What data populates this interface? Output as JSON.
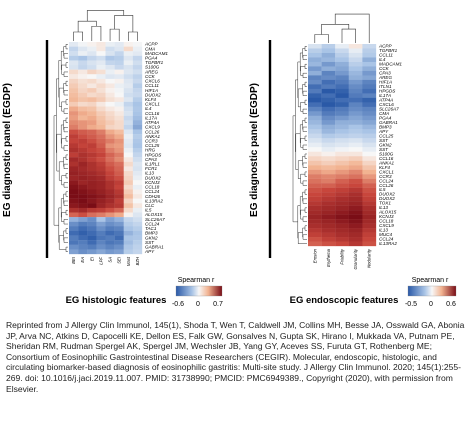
{
  "chart_data": [
    {
      "type": "heatmap",
      "panel": "left",
      "ylabel": "EG diagnostic panel (EGDP)",
      "xlabel": "EG histologic features",
      "columns": [
        "BEI",
        "EA",
        "EI",
        "LPF",
        "SA",
        "SEI",
        "Mast",
        "BZH"
      ],
      "rows": [
        "ACPP",
        "CMA",
        "MADCAM1",
        "PGA4",
        "TGFBR1",
        "S100G",
        "AREG",
        "CCK",
        "CXCL6",
        "CCL11",
        "HIF1A",
        "DUOX2",
        "KLF4",
        "CXCL1",
        "IL4",
        "CCL16",
        "IL17A",
        "ATP4A",
        "CXCL9",
        "CCL26",
        "ANKA1",
        "CCR3",
        "CCL25",
        "HRG",
        "HPGDS",
        "CPA3",
        "IL1RL1",
        "FCR1",
        "IL13",
        "DUOX2",
        "KCNJ3",
        "CCL18",
        "CCL24",
        "CDH26",
        "IL13RA2",
        "CLC",
        "IL5",
        "ALOX15",
        "SLC26A7",
        "CCL24",
        "TAC1",
        "BMP3",
        "GKN2",
        "SST",
        "GABRA1",
        "APY"
      ],
      "legend": {
        "title": "Spearman r",
        "ticks": [
          "-0.6",
          "0",
          "0.7"
        ]
      },
      "values": [
        [
          -0.08,
          -0.02,
          0.02,
          0.05,
          -0.05,
          -0.08,
          0.02,
          -0.01
        ],
        [
          -0.2,
          -0.1,
          -0.05,
          0.05,
          -0.15,
          -0.1,
          0.1,
          -0.05
        ],
        [
          -0.15,
          -0.05,
          -0.1,
          0.0,
          -0.12,
          -0.2,
          -0.05,
          -0.08
        ],
        [
          -0.25,
          -0.3,
          -0.2,
          -0.15,
          -0.28,
          -0.25,
          -0.1,
          -0.2
        ],
        [
          -0.1,
          -0.18,
          -0.12,
          -0.08,
          -0.2,
          -0.22,
          -0.05,
          -0.15
        ],
        [
          -0.12,
          -0.2,
          -0.15,
          -0.05,
          -0.1,
          -0.18,
          -0.12,
          -0.2
        ],
        [
          0.1,
          0.05,
          0.12,
          0.08,
          -0.05,
          0.02,
          -0.1,
          -0.15
        ],
        [
          0.05,
          0.02,
          0.0,
          -0.05,
          -0.1,
          -0.08,
          -0.15,
          -0.22
        ],
        [
          0.12,
          0.08,
          0.1,
          0.05,
          0.0,
          0.02,
          -0.1,
          -0.18
        ],
        [
          0.15,
          0.1,
          0.05,
          0.1,
          0.05,
          -0.05,
          -0.08,
          -0.25
        ],
        [
          0.18,
          0.12,
          0.15,
          0.08,
          0.02,
          -0.02,
          -0.12,
          -0.2
        ],
        [
          0.2,
          0.15,
          0.1,
          0.12,
          0.05,
          0.0,
          -0.15,
          -0.18
        ],
        [
          0.22,
          0.18,
          0.2,
          0.15,
          0.08,
          0.05,
          -0.1,
          -0.25
        ],
        [
          0.15,
          0.1,
          0.12,
          0.05,
          0.0,
          -0.05,
          -0.2,
          -0.3
        ],
        [
          0.25,
          0.2,
          0.18,
          0.1,
          0.05,
          0.02,
          -0.15,
          -0.28
        ],
        [
          0.3,
          0.25,
          0.22,
          0.15,
          0.1,
          0.05,
          -0.12,
          -0.3
        ],
        [
          0.28,
          0.22,
          0.25,
          0.18,
          0.12,
          0.08,
          -0.18,
          -0.32
        ],
        [
          0.32,
          0.3,
          0.28,
          0.2,
          0.15,
          0.1,
          -0.15,
          -0.35
        ],
        [
          0.35,
          0.3,
          0.25,
          0.22,
          0.12,
          0.1,
          -0.2,
          -0.38
        ],
        [
          0.45,
          0.42,
          0.4,
          0.35,
          0.25,
          0.2,
          -0.1,
          -0.3
        ],
        [
          0.5,
          0.45,
          0.42,
          0.38,
          0.3,
          0.25,
          -0.05,
          -0.25
        ],
        [
          0.48,
          0.5,
          0.45,
          0.4,
          0.35,
          0.3,
          -0.08,
          -0.28
        ],
        [
          0.52,
          0.48,
          0.5,
          0.42,
          0.3,
          0.28,
          -0.1,
          -0.3
        ],
        [
          0.55,
          0.52,
          0.48,
          0.45,
          0.35,
          0.3,
          -0.05,
          -0.25
        ],
        [
          0.5,
          0.55,
          0.52,
          0.48,
          0.4,
          0.35,
          0.0,
          -0.2
        ],
        [
          0.58,
          0.55,
          0.5,
          0.45,
          0.38,
          0.32,
          0.05,
          -0.15
        ],
        [
          0.55,
          0.6,
          0.55,
          0.5,
          0.42,
          0.38,
          0.1,
          -0.1
        ],
        [
          0.6,
          0.58,
          0.55,
          0.52,
          0.45,
          0.4,
          0.05,
          -0.12
        ],
        [
          0.62,
          0.6,
          0.58,
          0.55,
          0.48,
          0.42,
          0.1,
          -0.08
        ],
        [
          0.6,
          0.62,
          0.6,
          0.58,
          0.5,
          0.45,
          0.12,
          -0.05
        ],
        [
          0.65,
          0.6,
          0.62,
          0.6,
          0.55,
          0.5,
          0.15,
          0.0
        ],
        [
          0.68,
          0.65,
          0.62,
          0.6,
          0.55,
          0.48,
          0.1,
          -0.05
        ],
        [
          0.7,
          0.68,
          0.65,
          0.62,
          0.58,
          0.52,
          0.15,
          0.02
        ],
        [
          0.7,
          0.7,
          0.68,
          0.65,
          0.6,
          0.55,
          0.2,
          0.05
        ],
        [
          0.68,
          0.7,
          0.66,
          0.62,
          0.58,
          0.5,
          0.12,
          0.0
        ],
        [
          0.65,
          0.68,
          0.7,
          0.6,
          0.55,
          0.52,
          0.18,
          0.05
        ],
        [
          0.55,
          0.58,
          0.52,
          0.5,
          0.45,
          0.4,
          0.1,
          -0.05
        ],
        [
          0.4,
          0.45,
          0.38,
          0.35,
          0.3,
          0.25,
          0.02,
          -0.1
        ],
        [
          -0.35,
          -0.4,
          -0.45,
          -0.3,
          -0.4,
          -0.35,
          -0.2,
          -0.15
        ],
        [
          -0.45,
          -0.5,
          -0.48,
          -0.4,
          -0.45,
          -0.42,
          -0.25,
          -0.2
        ],
        [
          -0.5,
          -0.55,
          -0.52,
          -0.45,
          -0.5,
          -0.48,
          -0.3,
          -0.25
        ],
        [
          -0.55,
          -0.58,
          -0.55,
          -0.5,
          -0.55,
          -0.52,
          -0.35,
          -0.3
        ],
        [
          -0.5,
          -0.55,
          -0.58,
          -0.52,
          -0.5,
          -0.55,
          -0.3,
          -0.28
        ],
        [
          -0.52,
          -0.5,
          -0.55,
          -0.48,
          -0.52,
          -0.5,
          -0.32,
          -0.25
        ],
        [
          -0.45,
          -0.48,
          -0.5,
          -0.45,
          -0.48,
          -0.45,
          -0.28,
          -0.22
        ],
        [
          -0.4,
          -0.45,
          -0.42,
          -0.38,
          -0.42,
          -0.4,
          -0.25,
          -0.2
        ]
      ]
    },
    {
      "type": "heatmap",
      "panel": "right",
      "ylabel": "EG diagnostic panel (EGDP)",
      "xlabel": "EG endoscopic features",
      "columns": [
        "Erosion",
        "Erythema",
        "Friability",
        "Granularity",
        "Nodularity"
      ],
      "rows": [
        "ACPP",
        "TGFBR1",
        "CCL11",
        "IL4",
        "MADCAM1",
        "CCK",
        "CPA3",
        "AREG",
        "HIF1A",
        "ITLN1",
        "HPGDS",
        "IL17A",
        "ATP4A",
        "CXCL6",
        "SLC26A7",
        "CMA",
        "PGA4",
        "GABRA1",
        "BMP3",
        "APY",
        "CCL25",
        "SST",
        "GKN2",
        "SST",
        "S100G",
        "CCL16",
        "ANKA1",
        "KLF4",
        "CXCL1",
        "CCR3",
        "CCL24",
        "CCL26",
        "IL5",
        "DUOX2",
        "DUOX2",
        "TOX1",
        "IL13",
        "ALOX15",
        "KCNJ3",
        "CCL18",
        "CXCL9",
        "IL13",
        "MUC4",
        "CCL24",
        "IL13RA2"
      ],
      "legend": {
        "title": "Spearman r",
        "ticks": [
          "-0.5",
          "0",
          "0.6"
        ]
      },
      "values": [
        [
          -0.1,
          -0.2,
          -0.05,
          0.05,
          -0.15
        ],
        [
          -0.2,
          -0.25,
          -0.15,
          -0.05,
          -0.2
        ],
        [
          -0.25,
          -0.3,
          -0.2,
          -0.1,
          -0.22
        ],
        [
          -0.3,
          -0.28,
          -0.25,
          -0.15,
          -0.3
        ],
        [
          -0.28,
          -0.35,
          -0.3,
          -0.2,
          -0.25
        ],
        [
          -0.35,
          -0.3,
          -0.32,
          -0.25,
          -0.3
        ],
        [
          -0.3,
          -0.4,
          -0.35,
          -0.28,
          -0.35
        ],
        [
          -0.4,
          -0.38,
          -0.4,
          -0.3,
          -0.32
        ],
        [
          -0.38,
          -0.45,
          -0.42,
          -0.35,
          -0.4
        ],
        [
          -0.45,
          -0.42,
          -0.45,
          -0.38,
          -0.42
        ],
        [
          -0.42,
          -0.5,
          -0.48,
          -0.4,
          -0.45
        ],
        [
          -0.48,
          -0.45,
          -0.5,
          -0.42,
          -0.4
        ],
        [
          -0.5,
          -0.48,
          -0.45,
          -0.45,
          -0.48
        ],
        [
          -0.45,
          -0.5,
          -0.48,
          -0.4,
          -0.45
        ],
        [
          -0.4,
          -0.45,
          -0.42,
          -0.38,
          -0.4
        ],
        [
          -0.35,
          -0.42,
          -0.4,
          -0.35,
          -0.38
        ],
        [
          -0.3,
          -0.38,
          -0.35,
          -0.32,
          -0.35
        ],
        [
          -0.28,
          -0.35,
          -0.3,
          -0.3,
          -0.32
        ],
        [
          -0.25,
          -0.3,
          -0.28,
          -0.25,
          -0.28
        ],
        [
          -0.2,
          -0.28,
          -0.25,
          -0.22,
          -0.25
        ],
        [
          -0.15,
          -0.22,
          -0.2,
          -0.18,
          -0.2
        ],
        [
          -0.1,
          -0.15,
          -0.12,
          -0.1,
          -0.15
        ],
        [
          -0.05,
          -0.1,
          -0.08,
          -0.05,
          -0.1
        ],
        [
          0.0,
          -0.05,
          -0.02,
          0.0,
          -0.05
        ],
        [
          0.05,
          0.02,
          0.05,
          0.05,
          0.0
        ],
        [
          0.1,
          0.08,
          0.1,
          0.12,
          0.05
        ],
        [
          0.15,
          0.12,
          0.15,
          0.18,
          0.1
        ],
        [
          0.2,
          0.18,
          0.2,
          0.22,
          0.15
        ],
        [
          0.25,
          0.22,
          0.25,
          0.28,
          0.2
        ],
        [
          0.3,
          0.28,
          0.3,
          0.32,
          0.25
        ],
        [
          0.32,
          0.3,
          0.35,
          0.38,
          0.3
        ],
        [
          0.35,
          0.35,
          0.38,
          0.4,
          0.35
        ],
        [
          0.38,
          0.4,
          0.42,
          0.45,
          0.38
        ],
        [
          0.4,
          0.42,
          0.45,
          0.48,
          0.4
        ],
        [
          0.42,
          0.45,
          0.48,
          0.5,
          0.42
        ],
        [
          0.45,
          0.48,
          0.5,
          0.52,
          0.45
        ],
        [
          0.48,
          0.5,
          0.52,
          0.55,
          0.48
        ],
        [
          0.5,
          0.52,
          0.55,
          0.58,
          0.5
        ],
        [
          0.52,
          0.55,
          0.58,
          0.6,
          0.52
        ],
        [
          0.5,
          0.52,
          0.55,
          0.58,
          0.5
        ],
        [
          0.48,
          0.5,
          0.52,
          0.55,
          0.48
        ],
        [
          0.45,
          0.48,
          0.5,
          0.52,
          0.45
        ],
        [
          0.42,
          0.45,
          0.48,
          0.5,
          0.42
        ],
        [
          0.38,
          0.42,
          0.45,
          0.48,
          0.4
        ],
        [
          0.35,
          0.38,
          0.4,
          0.45,
          0.38
        ]
      ]
    }
  ],
  "caption": "Reprinted from J Allergy Clin Immunol, 145(1), Shoda T, Wen T, Caldwell JM, Collins MH, Besse JA, Osswald GA, Abonia JP, Arva NC, Atkins D, Capocelli KE, Dellon ES, Falk GW, Gonsalves N, Gupta SK, Hirano I, Mukkada VA, Putnam PE, Sheridan RM, Rudman Spergel AK, Spergel JM, Wechsler JB, Yang GY, Aceves SS, Furuta GT, Rothenberg ME; Consortium of Eosinophilic Gastrointestinal Disease Researchers (CEGIR). Molecular, endoscopic, histologic, and circulating biomarker-based diagnosis of eosinophilic gastritis: Multi-site study. J Allergy Clin Immunol. 2020; 145(1):255-269. doi: 10.1016/j.jaci.2019.11.007. PMID: 31738990; PMCID: PMC6949389., Copyright (2020), with permission from Elsevier."
}
